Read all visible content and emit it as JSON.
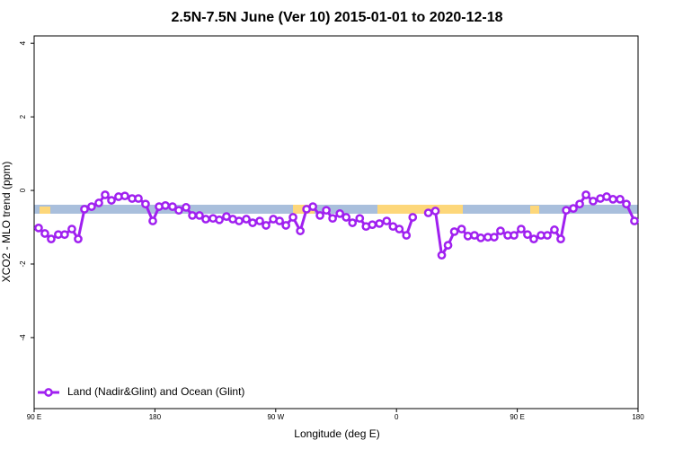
{
  "chart_data": {
    "type": "line",
    "title": "2.5N-7.5N June (Ver 10)   2015-01-01 to 2020-12-18",
    "x_label": "Longitude (deg E)",
    "y_label": "XCO2 - MLO trend (ppm)",
    "x": [
      93.3,
      98.0,
      102.7,
      108.0,
      112.7,
      118.1,
      122.8,
      127.5,
      132.8,
      138.2,
      142.9,
      147.6,
      152.9,
      157.6,
      163.0,
      167.7,
      173.0,
      178.4,
      183.1,
      187.8,
      193.1,
      197.8,
      203.2,
      207.9,
      213.2,
      217.9,
      223.3,
      228.0,
      233.3,
      238.0,
      242.7,
      248.1,
      252.8,
      258.1,
      262.8,
      268.2,
      272.9,
      277.6,
      282.9,
      288.3,
      293.0,
      297.7,
      303.0,
      307.7,
      312.4,
      317.8,
      322.5,
      327.2,
      332.6,
      337.3,
      342.0,
      347.3,
      352.7,
      357.4,
      362.1,
      367.4,
      372.1,
      377.3,
      383.7,
      389.0,
      393.7,
      398.4,
      403.1,
      408.5,
      413.2,
      418.1,
      422.8,
      428.1,
      432.8,
      437.5,
      442.9,
      447.6,
      452.9,
      457.6,
      462.3,
      467.7,
      472.4,
      477.7,
      482.4,
      486.5,
      491.8,
      496.5,
      501.2,
      506.5,
      511.9,
      516.6,
      521.3,
      526.6,
      531.3,
      537.3
    ],
    "series": [
      {
        "name": "Land (Nadir&Glint) and Ocean (Glint)",
        "color": "#a020f0",
        "values": [
          -1.02,
          -1.17,
          -1.32,
          -1.2,
          -1.2,
          -1.05,
          -1.32,
          -0.51,
          -0.44,
          -0.34,
          -0.12,
          -0.27,
          -0.17,
          -0.15,
          -0.22,
          -0.22,
          -0.37,
          -0.83,
          -0.44,
          -0.41,
          -0.44,
          -0.54,
          -0.46,
          -0.68,
          -0.68,
          -0.78,
          -0.76,
          -0.8,
          -0.71,
          -0.78,
          -0.83,
          -0.78,
          -0.88,
          -0.83,
          -0.95,
          -0.78,
          -0.83,
          -0.95,
          -0.73,
          -1.1,
          -0.51,
          -0.44,
          -0.68,
          -0.54,
          -0.76,
          -0.63,
          -0.73,
          -0.88,
          -0.76,
          -0.98,
          -0.93,
          -0.9,
          -0.83,
          -0.98,
          -1.05,
          -1.22,
          -0.73,
          null,
          -0.61,
          -0.56,
          -1.76,
          -1.49,
          -1.12,
          -1.05,
          -1.24,
          -1.22,
          -1.29,
          -1.27,
          -1.27,
          -1.1,
          -1.22,
          -1.22,
          -1.05,
          -1.2,
          -1.32,
          -1.22,
          -1.22,
          -1.07,
          -1.32,
          -0.54,
          -0.49,
          -0.37,
          -0.12,
          -0.29,
          -0.22,
          -0.17,
          -0.24,
          -0.24,
          -0.37,
          -0.83
        ]
      }
    ],
    "xlim": [
      90,
      540
    ],
    "xticks": [
      {
        "value": 90,
        "label": "90 E"
      },
      180,
      {
        "value": 270,
        "label": "90 W"
      },
      {
        "value": 360,
        "label": "0"
      },
      {
        "value": 450,
        "label": "90 E"
      },
      {
        "value": 540,
        "label": "180"
      }
    ],
    "ylim": [
      -5.93,
      4.2
    ],
    "yticks": [
      -4,
      -2,
      0,
      2,
      4
    ],
    "legend": "bottom left"
  }
}
